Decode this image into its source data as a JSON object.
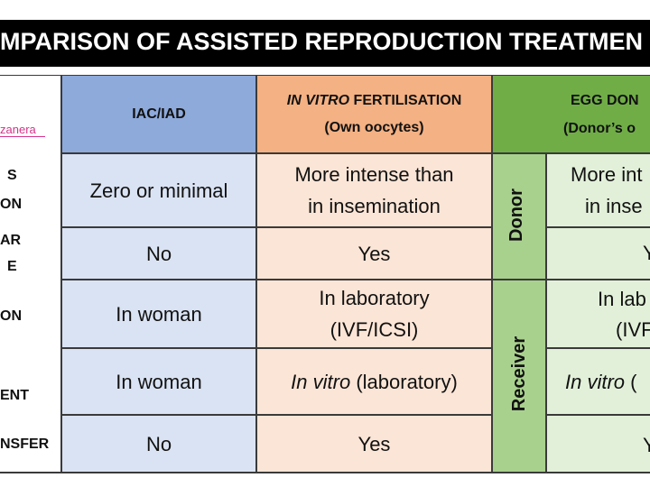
{
  "header": {
    "title": "MPARISON OF ASSISTED REPRODUCTION TREATMEN"
  },
  "logo": "zanera",
  "table": {
    "headers": [
      {
        "text": "IAC/IAD"
      },
      {
        "italic": "IN VITRO",
        "text": "FERTILISATION",
        "sub": "(Own oocytes)"
      },
      {
        "text": "EGG DON",
        "sub": "(Donor’s o"
      }
    ],
    "groups": [
      "Donor",
      "Receiver"
    ],
    "rows": [
      {
        "label": [
          "S",
          "ON"
        ],
        "cells": [
          [
            "Zero or minimal"
          ],
          [
            "More intense than",
            "in insemination"
          ],
          [
            "More int",
            "in inse"
          ]
        ]
      },
      {
        "label": [
          "AR",
          "E"
        ],
        "cells": [
          [
            "No"
          ],
          [
            "Yes"
          ],
          [
            "Y"
          ]
        ]
      },
      {
        "label": [
          "ON"
        ],
        "cells": [
          [
            "In woman"
          ],
          [
            "In laboratory",
            "(IVF/ICSI)"
          ],
          [
            "In lab",
            "(IVF"
          ]
        ]
      },
      {
        "label": [
          "ENT"
        ],
        "cells": [
          [
            "In woman"
          ],
          {
            "italic": "In vitro",
            "text": "(laboratory)"
          },
          {
            "italic": "In vitro",
            "text": "("
          }
        ]
      },
      {
        "label": [
          "NSFER"
        ],
        "cells": [
          [
            "No"
          ],
          [
            "Yes"
          ],
          [
            "Y"
          ]
        ]
      }
    ]
  }
}
